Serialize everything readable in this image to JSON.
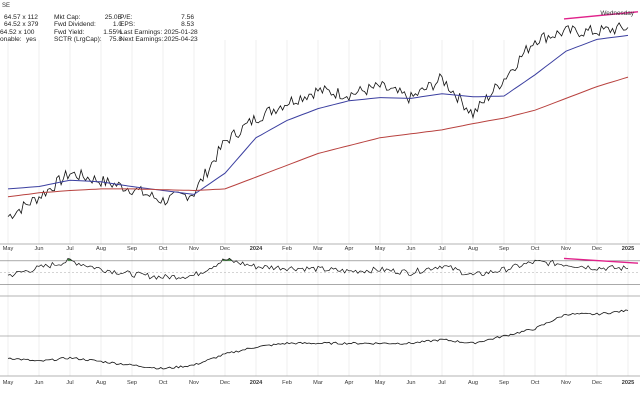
{
  "header": {
    "note": "SE",
    "day_label": "Wednesday"
  },
  "quote_box": {
    "col1": [
      {
        "label": "",
        "value": "64.57 x 112"
      },
      {
        "label": "",
        "value": "64.52 x 379"
      },
      {
        "label": "",
        "value": "64.52 x 100"
      },
      {
        "label": "onable:",
        "value": "yes"
      }
    ],
    "col2": [
      {
        "label": "Mkt Cap:",
        "value": "25.0B"
      },
      {
        "label": "Fwd Dividend:",
        "value": "1.0"
      },
      {
        "label": "Fwd Yield:",
        "value": "1.55%"
      },
      {
        "label": "SCTR (LrgCap):",
        "value": "75.8"
      }
    ],
    "col3": [
      {
        "label": "P/E:",
        "value": "7.56"
      },
      {
        "label": "EPS:",
        "value": "8.53"
      },
      {
        "label": "Last Earnings:",
        "value": "2025-01-28"
      },
      {
        "label": "Next Earnings:",
        "value": "2025-04-23"
      }
    ]
  },
  "chart_data": {
    "type": "line",
    "time_axis": {
      "tick_labels": [
        "May",
        "Jun",
        "Jul",
        "Aug",
        "Sep",
        "Oct",
        "Nov",
        "Dec",
        "2024",
        "Feb",
        "Mar",
        "Apr",
        "May",
        "Jun",
        "Jul",
        "Aug",
        "Sep",
        "Oct",
        "Nov",
        "Dec",
        "2025"
      ],
      "bold_labels": [
        "2024",
        "2025"
      ],
      "start": "2023-05",
      "end": "2025-01"
    },
    "price_panel": {
      "series": [
        {
          "role": "price",
          "color": "#111111",
          "x": [
            "2023-05",
            "2023-06",
            "2023-07",
            "2023-08",
            "2023-09",
            "2023-10",
            "2023-11",
            "2023-12",
            "2024-01",
            "2024-02",
            "2024-03",
            "2024-04",
            "2024-05",
            "2024-06",
            "2024-07",
            "2024-08",
            "2024-09",
            "2024-10",
            "2024-11",
            "2024-12",
            "2025-01"
          ],
          "values": [
            39.5,
            42,
            45,
            44,
            43,
            41.5,
            42.5,
            49,
            52,
            54,
            55.5,
            55,
            56,
            54.5,
            57,
            52.5,
            57,
            62,
            63,
            63,
            63.5
          ]
        },
        {
          "role": "ma_short",
          "color": "#3b3fa0",
          "values": [
            43,
            43.3,
            44.1,
            43.9,
            43.3,
            42.8,
            42.3,
            45,
            49.5,
            51.7,
            53.2,
            54.2,
            54.6,
            54.5,
            55.1,
            54.7,
            54.8,
            57.5,
            60.5,
            62,
            62.5
          ]
        },
        {
          "role": "ma_long",
          "color": "#b8423f",
          "values": [
            42,
            42.5,
            42.8,
            43,
            43,
            42.9,
            42.8,
            43,
            44.5,
            46,
            47.5,
            48.5,
            49.5,
            50,
            50.5,
            51.3,
            52,
            53,
            54.5,
            56,
            57.2
          ]
        }
      ],
      "trendline": {
        "color": "#e0218a",
        "from": [
          "2024-11",
          64.6
        ],
        "to": [
          "2025-01",
          65.5
        ]
      }
    },
    "rsi_panel": {
      "series": [
        {
          "role": "rsi",
          "color": "#111111",
          "values": [
            45,
            58,
            70,
            56,
            47,
            42,
            45,
            72,
            60,
            58,
            56,
            52,
            55,
            50,
            62,
            45,
            55,
            68,
            64,
            58,
            57
          ]
        }
      ],
      "levels": [
        30,
        70
      ],
      "ylim": [
        10,
        85
      ],
      "overbought_fill": "#3c8a3c",
      "trendline": {
        "color": "#e0218a",
        "from": [
          "2024-11",
          74
        ],
        "to": [
          "2025-01",
          66
        ]
      }
    },
    "relative_panel": {
      "series": [
        {
          "role": "ratio",
          "color": "#111111",
          "values": [
            0.25,
            0.24,
            0.25,
            0.24,
            0.23,
            0.22,
            0.23,
            0.26,
            0.28,
            0.29,
            0.29,
            0.29,
            0.29,
            0.29,
            0.3,
            0.29,
            0.31,
            0.33,
            0.37,
            0.37,
            0.38
          ]
        }
      ],
      "reference_level": 0.31,
      "ylim": [
        0.2,
        0.42
      ]
    }
  }
}
